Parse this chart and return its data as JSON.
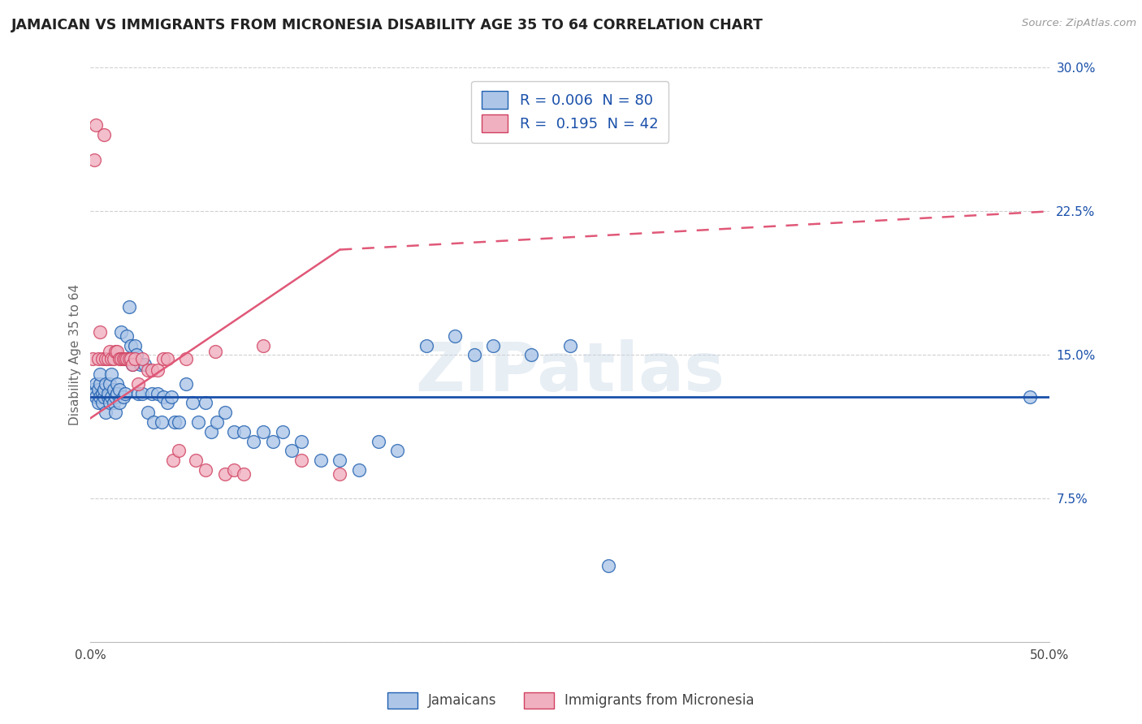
{
  "title": "JAMAICAN VS IMMIGRANTS FROM MICRONESIA DISABILITY AGE 35 TO 64 CORRELATION CHART",
  "source": "Source: ZipAtlas.com",
  "ylabel": "Disability Age 35 to 64",
  "xlim": [
    0.0,
    0.5
  ],
  "ylim": [
    0.0,
    0.3
  ],
  "xticks": [
    0.0,
    0.05,
    0.1,
    0.15,
    0.2,
    0.25,
    0.3,
    0.35,
    0.4,
    0.45,
    0.5
  ],
  "xtick_labels": [
    "0.0%",
    "",
    "",
    "",
    "",
    "",
    "",
    "",
    "",
    "",
    "50.0%"
  ],
  "yticks": [
    0.0,
    0.075,
    0.15,
    0.225,
    0.3
  ],
  "ytick_labels": [
    "",
    "7.5%",
    "15.0%",
    "22.5%",
    "30.0%"
  ],
  "grid_color": "#d0d0d0",
  "bg_color": "#ffffff",
  "j_face": "#adc6e8",
  "j_edge": "#2060b0",
  "m_face": "#f0b0c0",
  "m_edge": "#d04060",
  "j_line_color": "#1a50aa",
  "m_line_color": "#e05878",
  "watermark": "ZIPatlas",
  "bottom_legend_1": "Jamaicans",
  "bottom_legend_2": "Immigrants from Micronesia",
  "leg_label_1": "R = 0.006  N = 80",
  "leg_label_2": "R =  0.195  N = 42",
  "j_line_slope": 0.0,
  "j_line_intercept": 0.128,
  "m_line_start_x": 0.0,
  "m_line_start_y": 0.117,
  "m_line_end_x": 0.13,
  "m_line_end_y": 0.205,
  "m_line_dash_end_x": 0.5,
  "m_line_dash_end_y": 0.225,
  "jamaicans_x": [
    0.001,
    0.002,
    0.003,
    0.003,
    0.004,
    0.004,
    0.005,
    0.005,
    0.005,
    0.006,
    0.006,
    0.007,
    0.007,
    0.008,
    0.008,
    0.009,
    0.009,
    0.01,
    0.01,
    0.011,
    0.011,
    0.012,
    0.012,
    0.013,
    0.013,
    0.014,
    0.014,
    0.015,
    0.015,
    0.016,
    0.017,
    0.018,
    0.019,
    0.02,
    0.021,
    0.022,
    0.023,
    0.024,
    0.025,
    0.026,
    0.027,
    0.028,
    0.03,
    0.032,
    0.033,
    0.035,
    0.037,
    0.038,
    0.04,
    0.042,
    0.044,
    0.046,
    0.05,
    0.053,
    0.056,
    0.06,
    0.063,
    0.066,
    0.07,
    0.075,
    0.08,
    0.085,
    0.09,
    0.095,
    0.1,
    0.105,
    0.11,
    0.12,
    0.13,
    0.14,
    0.15,
    0.16,
    0.175,
    0.19,
    0.2,
    0.21,
    0.23,
    0.25,
    0.27,
    0.49
  ],
  "jamaicans_y": [
    0.132,
    0.13,
    0.128,
    0.135,
    0.125,
    0.132,
    0.135,
    0.128,
    0.14,
    0.125,
    0.13,
    0.128,
    0.132,
    0.12,
    0.135,
    0.128,
    0.13,
    0.125,
    0.135,
    0.128,
    0.14,
    0.125,
    0.132,
    0.128,
    0.12,
    0.135,
    0.13,
    0.125,
    0.132,
    0.162,
    0.128,
    0.13,
    0.16,
    0.175,
    0.155,
    0.145,
    0.155,
    0.15,
    0.13,
    0.145,
    0.13,
    0.145,
    0.12,
    0.13,
    0.115,
    0.13,
    0.115,
    0.128,
    0.125,
    0.128,
    0.115,
    0.115,
    0.135,
    0.125,
    0.115,
    0.125,
    0.11,
    0.115,
    0.12,
    0.11,
    0.11,
    0.105,
    0.11,
    0.105,
    0.11,
    0.1,
    0.105,
    0.095,
    0.095,
    0.09,
    0.105,
    0.1,
    0.155,
    0.16,
    0.15,
    0.155,
    0.15,
    0.155,
    0.04,
    0.128
  ],
  "micronesia_x": [
    0.001,
    0.002,
    0.003,
    0.004,
    0.005,
    0.006,
    0.007,
    0.008,
    0.009,
    0.01,
    0.011,
    0.012,
    0.013,
    0.014,
    0.015,
    0.016,
    0.017,
    0.018,
    0.019,
    0.02,
    0.021,
    0.022,
    0.023,
    0.025,
    0.027,
    0.03,
    0.032,
    0.035,
    0.038,
    0.04,
    0.043,
    0.046,
    0.05,
    0.055,
    0.06,
    0.065,
    0.07,
    0.075,
    0.08,
    0.09,
    0.11,
    0.13
  ],
  "micronesia_y": [
    0.148,
    0.252,
    0.27,
    0.148,
    0.162,
    0.148,
    0.265,
    0.148,
    0.148,
    0.152,
    0.148,
    0.148,
    0.152,
    0.152,
    0.148,
    0.148,
    0.148,
    0.148,
    0.148,
    0.148,
    0.148,
    0.145,
    0.148,
    0.135,
    0.148,
    0.142,
    0.142,
    0.142,
    0.148,
    0.148,
    0.095,
    0.1,
    0.148,
    0.095,
    0.09,
    0.152,
    0.088,
    0.09,
    0.088,
    0.155,
    0.095,
    0.088
  ]
}
